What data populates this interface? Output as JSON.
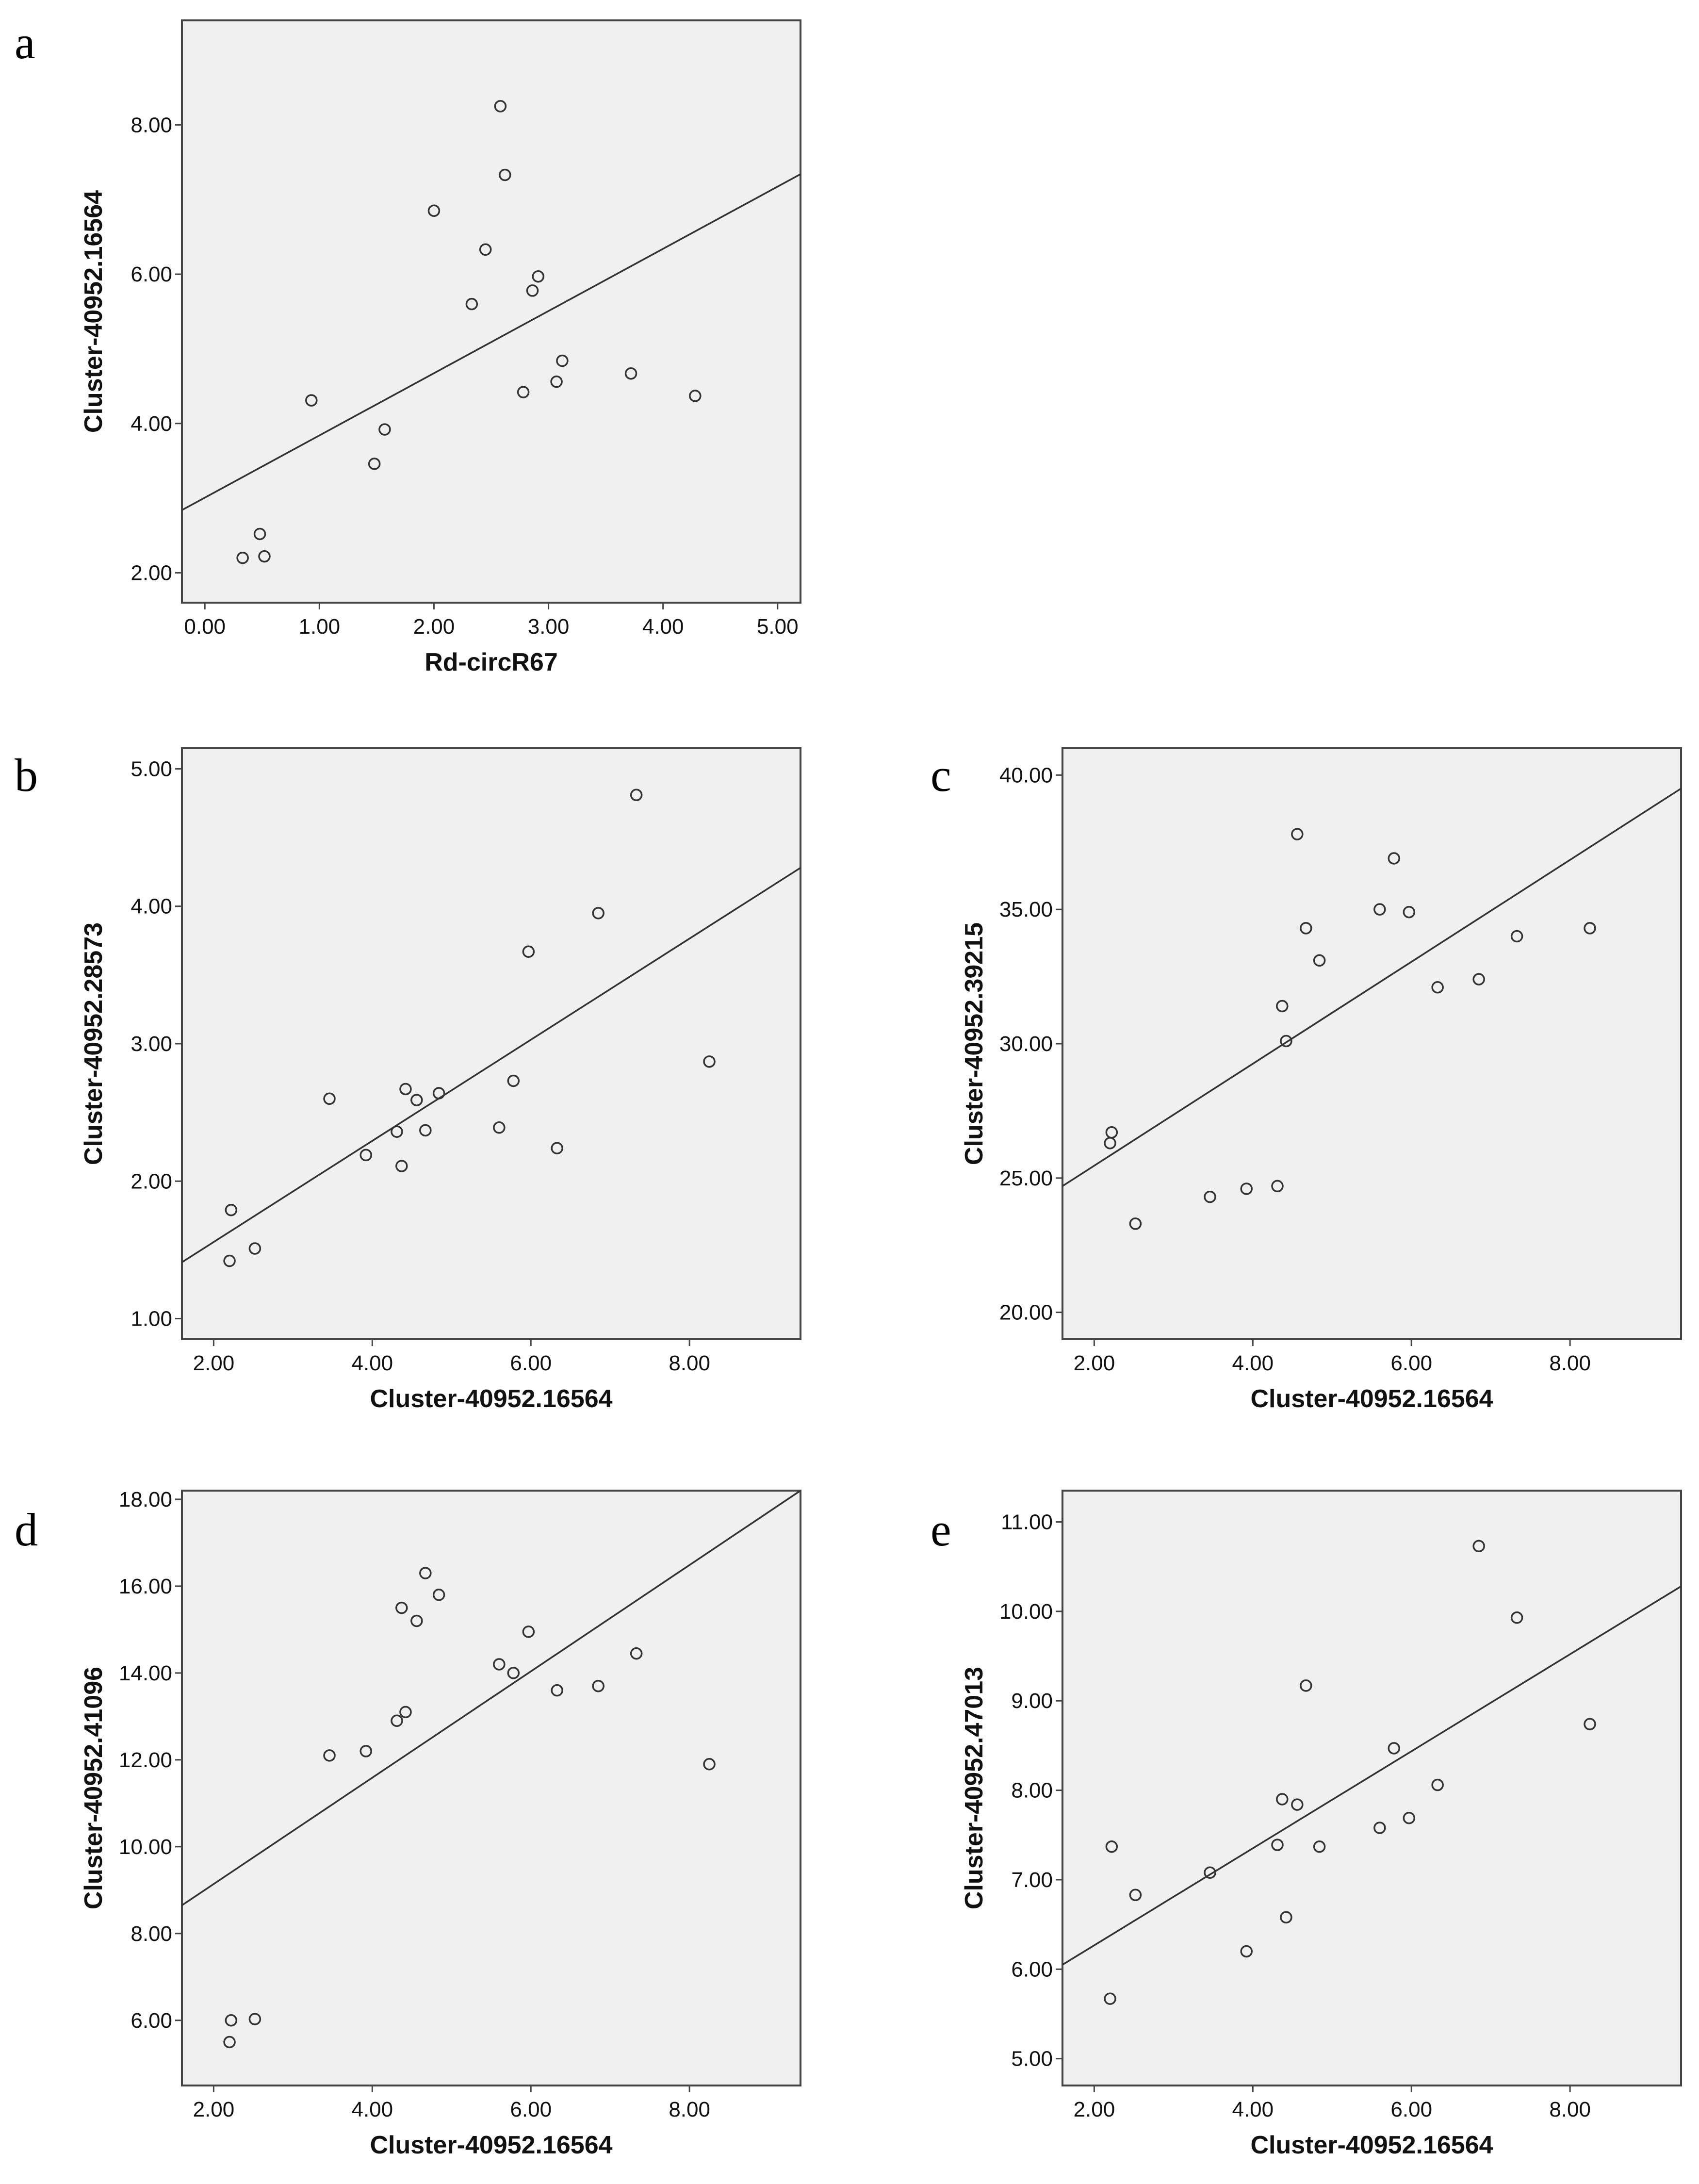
{
  "chart_data": [
    {
      "type": "scatter",
      "panel": "a",
      "xlabel": "Rd-circR67",
      "ylabel": "Cluster-40952.16564",
      "xlim": [
        -0.2,
        5.2
      ],
      "ylim": [
        1.6,
        9.4
      ],
      "xticks": [
        0,
        1,
        2,
        3,
        4,
        5
      ],
      "xtick_labels": [
        "0.00",
        "1.00",
        "2.00",
        "3.00",
        "4.00",
        "5.00"
      ],
      "yticks": [
        2,
        4,
        6,
        8
      ],
      "ytick_labels": [
        "2.00",
        "4.00",
        "6.00",
        "8.00"
      ],
      "points": [
        [
          0.33,
          2.2
        ],
        [
          0.48,
          2.52
        ],
        [
          0.52,
          2.22
        ],
        [
          0.93,
          4.31
        ],
        [
          1.48,
          3.46
        ],
        [
          1.57,
          3.92
        ],
        [
          2.0,
          6.85
        ],
        [
          2.33,
          5.6
        ],
        [
          2.45,
          6.33
        ],
        [
          2.58,
          8.25
        ],
        [
          2.62,
          7.33
        ],
        [
          2.78,
          4.42
        ],
        [
          2.86,
          5.78
        ],
        [
          2.91,
          5.97
        ],
        [
          3.07,
          4.56
        ],
        [
          3.12,
          4.84
        ],
        [
          3.72,
          4.67
        ],
        [
          4.28,
          4.37
        ]
      ],
      "fit_line": [
        [
          -0.2,
          2.84
        ],
        [
          5.2,
          7.34
        ]
      ]
    },
    {
      "type": "scatter",
      "panel": "b",
      "xlabel": "Cluster-40952.16564",
      "ylabel": "Cluster-40952.28573",
      "xlim": [
        1.6,
        9.4
      ],
      "ylim": [
        0.85,
        5.15
      ],
      "xticks": [
        2,
        4,
        6,
        8
      ],
      "xtick_labels": [
        "2.00",
        "4.00",
        "6.00",
        "8.00"
      ],
      "yticks": [
        1,
        2,
        3,
        4,
        5
      ],
      "ytick_labels": [
        "1.00",
        "2.00",
        "3.00",
        "4.00",
        "5.00"
      ],
      "points": [
        [
          2.2,
          1.42
        ],
        [
          2.22,
          1.79
        ],
        [
          2.52,
          1.51
        ],
        [
          3.46,
          2.6
        ],
        [
          3.92,
          2.19
        ],
        [
          4.31,
          2.36
        ],
        [
          4.37,
          2.11
        ],
        [
          4.42,
          2.67
        ],
        [
          4.56,
          2.59
        ],
        [
          4.67,
          2.37
        ],
        [
          4.84,
          2.64
        ],
        [
          5.6,
          2.39
        ],
        [
          5.78,
          2.73
        ],
        [
          5.97,
          3.67
        ],
        [
          6.33,
          2.24
        ],
        [
          6.85,
          3.95
        ],
        [
          7.33,
          4.81
        ],
        [
          8.25,
          2.87
        ]
      ],
      "fit_line": [
        [
          1.6,
          1.41
        ],
        [
          9.4,
          4.28
        ]
      ]
    },
    {
      "type": "scatter",
      "panel": "c",
      "xlabel": "Cluster-40952.16564",
      "ylabel": "Cluster-40952.39215",
      "xlim": [
        1.6,
        9.4
      ],
      "ylim": [
        19.0,
        41.0
      ],
      "xticks": [
        2,
        4,
        6,
        8
      ],
      "xtick_labels": [
        "2.00",
        "4.00",
        "6.00",
        "8.00"
      ],
      "yticks": [
        20,
        25,
        30,
        35,
        40
      ],
      "ytick_labels": [
        "20.00",
        "25.00",
        "30.00",
        "35.00",
        "40.00"
      ],
      "points": [
        [
          2.2,
          26.3
        ],
        [
          2.22,
          26.7
        ],
        [
          2.52,
          23.3
        ],
        [
          3.46,
          24.3
        ],
        [
          3.92,
          24.6
        ],
        [
          4.31,
          24.7
        ],
        [
          4.37,
          31.4
        ],
        [
          4.42,
          30.1
        ],
        [
          4.56,
          37.8
        ],
        [
          4.67,
          34.3
        ],
        [
          4.84,
          33.1
        ],
        [
          5.6,
          35.0
        ],
        [
          5.78,
          36.9
        ],
        [
          5.97,
          34.9
        ],
        [
          6.33,
          32.1
        ],
        [
          6.85,
          32.4
        ],
        [
          7.33,
          34.0
        ],
        [
          8.25,
          34.3
        ]
      ],
      "fit_line": [
        [
          1.6,
          24.7
        ],
        [
          9.4,
          39.5
        ]
      ]
    },
    {
      "type": "scatter",
      "panel": "d",
      "xlabel": "Cluster-40952.16564",
      "ylabel": "Cluster-40952.41096",
      "xlim": [
        1.6,
        9.4
      ],
      "ylim": [
        4.5,
        18.2
      ],
      "xticks": [
        2,
        4,
        6,
        8
      ],
      "xtick_labels": [
        "2.00",
        "4.00",
        "6.00",
        "8.00"
      ],
      "yticks": [
        6,
        8,
        10,
        12,
        14,
        16,
        18
      ],
      "ytick_labels": [
        "6.00",
        "8.00",
        "10.00",
        "12.00",
        "14.00",
        "16.00",
        "18.00"
      ],
      "points": [
        [
          2.2,
          5.5
        ],
        [
          2.22,
          6.0
        ],
        [
          2.52,
          6.03
        ],
        [
          3.46,
          12.1
        ],
        [
          3.92,
          12.2
        ],
        [
          4.31,
          12.9
        ],
        [
          4.37,
          15.5
        ],
        [
          4.42,
          13.1
        ],
        [
          4.56,
          15.2
        ],
        [
          4.67,
          16.3
        ],
        [
          4.84,
          15.8
        ],
        [
          5.6,
          14.2
        ],
        [
          5.78,
          14.0
        ],
        [
          5.97,
          14.95
        ],
        [
          6.33,
          13.6
        ],
        [
          6.85,
          13.7
        ],
        [
          7.33,
          14.45
        ],
        [
          8.25,
          11.9
        ]
      ],
      "fit_line": [
        [
          1.6,
          8.65
        ],
        [
          9.4,
          18.2
        ]
      ]
    },
    {
      "type": "scatter",
      "panel": "e",
      "xlabel": "Cluster-40952.16564",
      "ylabel": "Cluster-40952.47013",
      "xlim": [
        1.6,
        9.4
      ],
      "ylim": [
        4.7,
        11.35
      ],
      "xticks": [
        2,
        4,
        6,
        8
      ],
      "xtick_labels": [
        "2.00",
        "4.00",
        "6.00",
        "8.00"
      ],
      "yticks": [
        5,
        6,
        7,
        8,
        9,
        10,
        11
      ],
      "ytick_labels": [
        "5.00",
        "6.00",
        "7.00",
        "8.00",
        "9.00",
        "10.00",
        "11.00"
      ],
      "points": [
        [
          2.2,
          5.67
        ],
        [
          2.22,
          7.37
        ],
        [
          2.52,
          6.83
        ],
        [
          3.46,
          7.08
        ],
        [
          3.92,
          6.2
        ],
        [
          4.31,
          7.39
        ],
        [
          4.37,
          7.9
        ],
        [
          4.42,
          6.58
        ],
        [
          4.56,
          7.84
        ],
        [
          4.67,
          9.17
        ],
        [
          4.84,
          7.37
        ],
        [
          5.6,
          7.58
        ],
        [
          5.78,
          8.47
        ],
        [
          5.97,
          7.69
        ],
        [
          6.33,
          8.06
        ],
        [
          6.85,
          10.73
        ],
        [
          7.33,
          9.93
        ],
        [
          8.25,
          8.74
        ]
      ],
      "fit_line": [
        [
          1.6,
          6.05
        ],
        [
          9.4,
          10.28
        ]
      ]
    }
  ]
}
